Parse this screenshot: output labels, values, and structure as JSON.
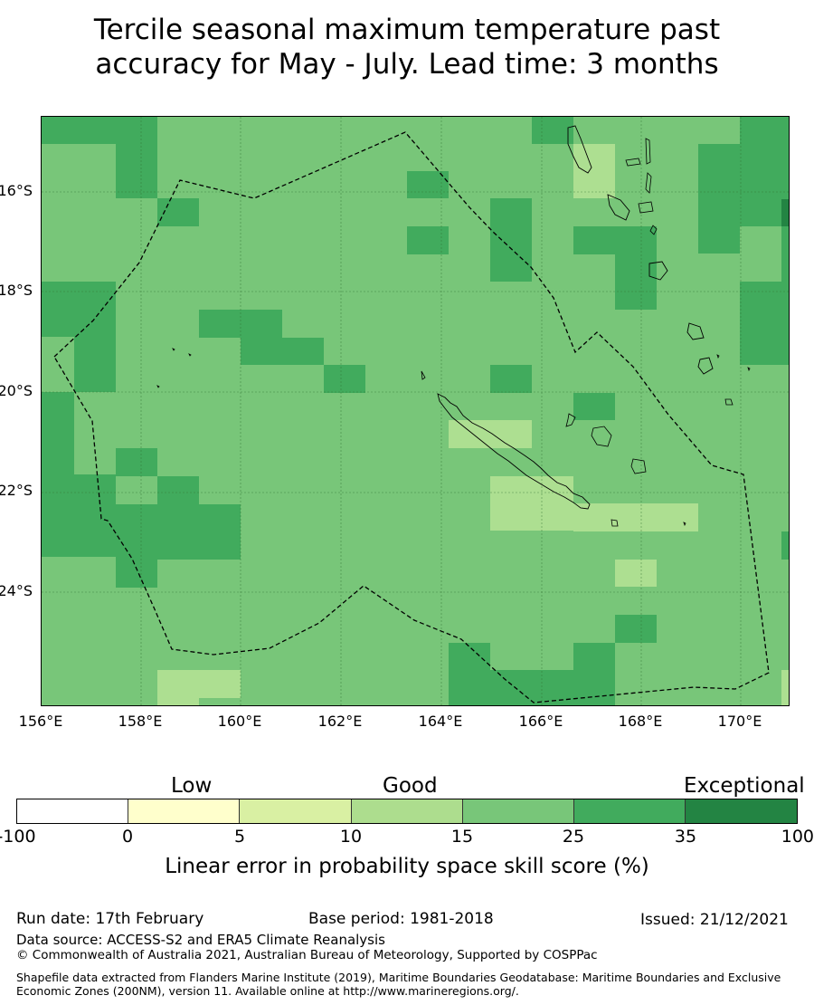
{
  "title": {
    "line1": "Tercile seasonal maximum temperature past",
    "line2": "accuracy for May - July. Lead time: 3 months"
  },
  "map": {
    "lat_labels": [
      "16°S",
      "18°S",
      "20°S",
      "22°S",
      "24°S"
    ],
    "lon_labels": [
      "156°E",
      "158°E",
      "160°E",
      "162°E",
      "164°E",
      "166°E",
      "168°E",
      "170°E"
    ],
    "lon_range": [
      156.0,
      171.0
    ],
    "lat_range": [
      -26.5,
      -14.7
    ],
    "grid_lines": true,
    "class_colors": {
      "10-15": "#addf91",
      "15-25": "#78c679",
      "25-35": "#41ab5d",
      "35-100": "#238443"
    },
    "boundary_style": "dashed",
    "regions": [
      "New Caledonia EEZ",
      "Vanuatu",
      "Loyalty Islands"
    ]
  },
  "colorbar": {
    "categories": [
      "Low",
      "Good",
      "Exceptional"
    ],
    "ticks": [
      "-100",
      "0",
      "5",
      "10",
      "15",
      "25",
      "35",
      "100"
    ],
    "colors": [
      "#ffffff",
      "#ffffcc",
      "#d9f0a3",
      "#addd8e",
      "#78c679",
      "#41ab5d",
      "#238443"
    ],
    "title": "Linear error in probability space skill score (%)"
  },
  "footer": {
    "run_date": "Run date: 17th February",
    "base_period": "Base period: 1981-2018",
    "issued": "Issued: 21/12/2021",
    "data_source": "Data source: ACCESS-S2 and ERA5 Climate Reanalysis",
    "copyright": "© Commonwealth of Australia 2021, Australian Bureau of Meteorology, Supported by COSPPac",
    "shapefile": "Shapefile data extracted from Flanders Marine Institute (2019), Maritime Boundaries Geodatabase: Maritime Boundaries and Exclusive Economic Zones (200NM), version 11. Available online at http://www.marineregions.org/."
  }
}
